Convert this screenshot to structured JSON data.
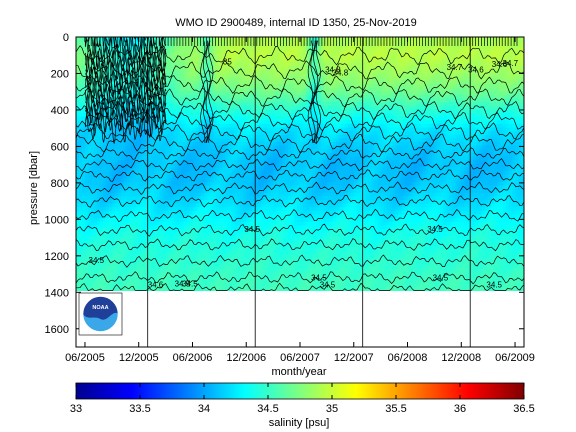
{
  "chart_data": {
    "type": "heatmap",
    "title": "WMO ID 2900489, internal ID 1350, 25-Nov-2019",
    "xlabel": "month/year",
    "ylabel": "pressure [dbar]",
    "x_ticks": [
      "06/2005",
      "12/2005",
      "06/2006",
      "12/2006",
      "06/2007",
      "12/2007",
      "06/2008",
      "12/2008",
      "06/2009"
    ],
    "y_ticks": [
      0,
      200,
      400,
      600,
      800,
      1000,
      1200,
      1400,
      1600
    ],
    "ylim": [
      1700,
      0
    ],
    "xlim": [
      "05/2005",
      "07/2009"
    ],
    "data_max_pressure": 1390,
    "year_boundaries": [
      "01/2006",
      "01/2007",
      "01/2008",
      "01/2009"
    ],
    "colorbar": {
      "label": "salinity [psu]",
      "min": 33,
      "max": 36.5,
      "ticks": [
        "33",
        "33.5",
        "34",
        "34.5",
        "35",
        "35.5",
        "36",
        "36.5"
      ],
      "colormap": "jet"
    },
    "salinity_profile_typical": {
      "pressure": [
        0,
        100,
        200,
        300,
        400,
        500,
        600,
        700,
        800,
        900,
        1000,
        1100,
        1200,
        1300,
        1390
      ],
      "salinity": [
        34.9,
        34.95,
        34.85,
        34.7,
        34.45,
        34.25,
        34.15,
        34.1,
        34.12,
        34.2,
        34.3,
        34.4,
        34.45,
        34.5,
        34.53
      ]
    },
    "contour_labels": [
      "34.5",
      "34.6",
      "34.5",
      "34.5",
      "34.5",
      "34.5",
      "34.5",
      "34.5",
      "35",
      "34.8",
      "34.8",
      "34.7",
      "34.6",
      "34.5",
      "34.5",
      "34.6",
      "34.7"
    ],
    "logo": "NOAA"
  }
}
